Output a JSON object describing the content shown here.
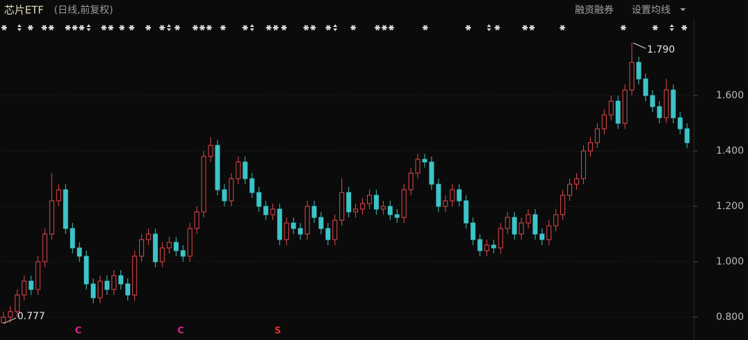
{
  "header": {
    "title": "芯片ETF",
    "subtitle": "(日线,前复权)",
    "buttons": [
      "融资融券",
      "设置均线"
    ]
  },
  "chart_data": {
    "type": "candlestick",
    "up_color": "#e8484c",
    "down_color": "#3cc4c8",
    "ylim": [
      0.7175,
      1.82
    ],
    "yticks": [
      {
        "value": 0.8,
        "label": "0.800"
      },
      {
        "value": 1.0,
        "label": "1.000"
      },
      {
        "value": 1.2,
        "label": "1.200"
      },
      {
        "value": 1.4,
        "label": "1.400"
      },
      {
        "value": 1.6,
        "label": "1.600"
      }
    ],
    "grid": true,
    "annotations": [
      "1.790",
      "0.777"
    ],
    "signals": [
      "C",
      "C",
      "S"
    ],
    "open": [
      0.78,
      0.8,
      0.82,
      0.88,
      0.93,
      0.9,
      1.0,
      1.1,
      1.22,
      1.26,
      1.12,
      1.05,
      1.02,
      0.92,
      0.87,
      0.93,
      0.9,
      0.95,
      0.92,
      0.88,
      1.02,
      1.08,
      1.1,
      1.0,
      1.05,
      1.07,
      1.04,
      1.02,
      1.12,
      1.18,
      1.38,
      1.42,
      1.26,
      1.22,
      1.3,
      1.36,
      1.3,
      1.25,
      1.2,
      1.17,
      1.19,
      1.08,
      1.14,
      1.12,
      1.1,
      1.2,
      1.16,
      1.12,
      1.08,
      1.15,
      1.25,
      1.18,
      1.19,
      1.21,
      1.24,
      1.19,
      1.2,
      1.17,
      1.16,
      1.26,
      1.32,
      1.37,
      1.36,
      1.28,
      1.2,
      1.22,
      1.26,
      1.22,
      1.14,
      1.08,
      1.04,
      1.06,
      1.05,
      1.12,
      1.16,
      1.1,
      1.14,
      1.17,
      1.1,
      1.08,
      1.13,
      1.17,
      1.24,
      1.28,
      1.3,
      1.4,
      1.43,
      1.48,
      1.53,
      1.58,
      1.5,
      1.62,
      1.72,
      1.66,
      1.6,
      1.56,
      1.52,
      1.62,
      1.52,
      1.48
    ],
    "high": [
      0.82,
      0.84,
      0.9,
      0.95,
      0.95,
      1.02,
      1.12,
      1.32,
      1.28,
      1.28,
      1.14,
      1.07,
      1.04,
      0.94,
      0.95,
      0.95,
      0.97,
      0.97,
      0.94,
      1.04,
      1.1,
      1.12,
      1.12,
      1.07,
      1.09,
      1.09,
      1.06,
      1.14,
      1.2,
      1.4,
      1.45,
      1.44,
      1.28,
      1.32,
      1.38,
      1.38,
      1.32,
      1.27,
      1.22,
      1.21,
      1.21,
      1.16,
      1.16,
      1.14,
      1.22,
      1.22,
      1.18,
      1.14,
      1.17,
      1.3,
      1.27,
      1.21,
      1.23,
      1.26,
      1.26,
      1.22,
      1.22,
      1.19,
      1.28,
      1.34,
      1.39,
      1.39,
      1.38,
      1.3,
      1.24,
      1.28,
      1.28,
      1.24,
      1.16,
      1.1,
      1.08,
      1.08,
      1.14,
      1.18,
      1.18,
      1.16,
      1.19,
      1.19,
      1.12,
      1.15,
      1.19,
      1.26,
      1.3,
      1.32,
      1.42,
      1.45,
      1.5,
      1.55,
      1.6,
      1.6,
      1.64,
      1.79,
      1.74,
      1.68,
      1.62,
      1.58,
      1.66,
      1.64,
      1.54,
      1.5
    ],
    "low": [
      0.777,
      0.78,
      0.8,
      0.86,
      0.88,
      0.88,
      0.98,
      1.08,
      1.2,
      1.1,
      1.03,
      1.0,
      0.9,
      0.85,
      0.85,
      0.88,
      0.88,
      0.9,
      0.86,
      0.86,
      1.0,
      1.06,
      0.98,
      0.98,
      1.03,
      1.02,
      1.0,
      1.0,
      1.1,
      1.16,
      1.36,
      1.24,
      1.2,
      1.2,
      1.28,
      1.28,
      1.23,
      1.18,
      1.15,
      1.15,
      1.06,
      1.06,
      1.1,
      1.08,
      1.08,
      1.14,
      1.1,
      1.06,
      1.06,
      1.13,
      1.16,
      1.16,
      1.17,
      1.19,
      1.17,
      1.17,
      1.15,
      1.14,
      1.14,
      1.24,
      1.3,
      1.34,
      1.26,
      1.18,
      1.18,
      1.2,
      1.2,
      1.12,
      1.06,
      1.02,
      1.02,
      1.03,
      1.03,
      1.1,
      1.08,
      1.08,
      1.12,
      1.08,
      1.06,
      1.06,
      1.11,
      1.15,
      1.22,
      1.26,
      1.28,
      1.38,
      1.41,
      1.46,
      1.51,
      1.48,
      1.48,
      1.6,
      1.64,
      1.58,
      1.54,
      1.5,
      1.5,
      1.5,
      1.46,
      1.41
    ],
    "close": [
      0.8,
      0.82,
      0.88,
      0.93,
      0.9,
      1.0,
      1.1,
      1.22,
      1.26,
      1.12,
      1.05,
      1.02,
      0.92,
      0.87,
      0.93,
      0.9,
      0.95,
      0.92,
      0.88,
      1.02,
      1.08,
      1.1,
      1.0,
      1.05,
      1.07,
      1.04,
      1.02,
      1.12,
      1.18,
      1.38,
      1.42,
      1.26,
      1.22,
      1.3,
      1.36,
      1.3,
      1.25,
      1.2,
      1.17,
      1.19,
      1.08,
      1.14,
      1.12,
      1.1,
      1.2,
      1.16,
      1.12,
      1.08,
      1.15,
      1.25,
      1.18,
      1.19,
      1.21,
      1.24,
      1.19,
      1.2,
      1.17,
      1.16,
      1.26,
      1.32,
      1.37,
      1.36,
      1.28,
      1.2,
      1.22,
      1.26,
      1.22,
      1.14,
      1.08,
      1.04,
      1.06,
      1.05,
      1.12,
      1.16,
      1.1,
      1.14,
      1.17,
      1.1,
      1.08,
      1.13,
      1.17,
      1.24,
      1.28,
      1.3,
      1.4,
      1.43,
      1.48,
      1.53,
      1.58,
      1.5,
      1.62,
      1.72,
      1.66,
      1.6,
      1.56,
      1.52,
      1.62,
      1.52,
      1.48,
      1.43
    ]
  }
}
